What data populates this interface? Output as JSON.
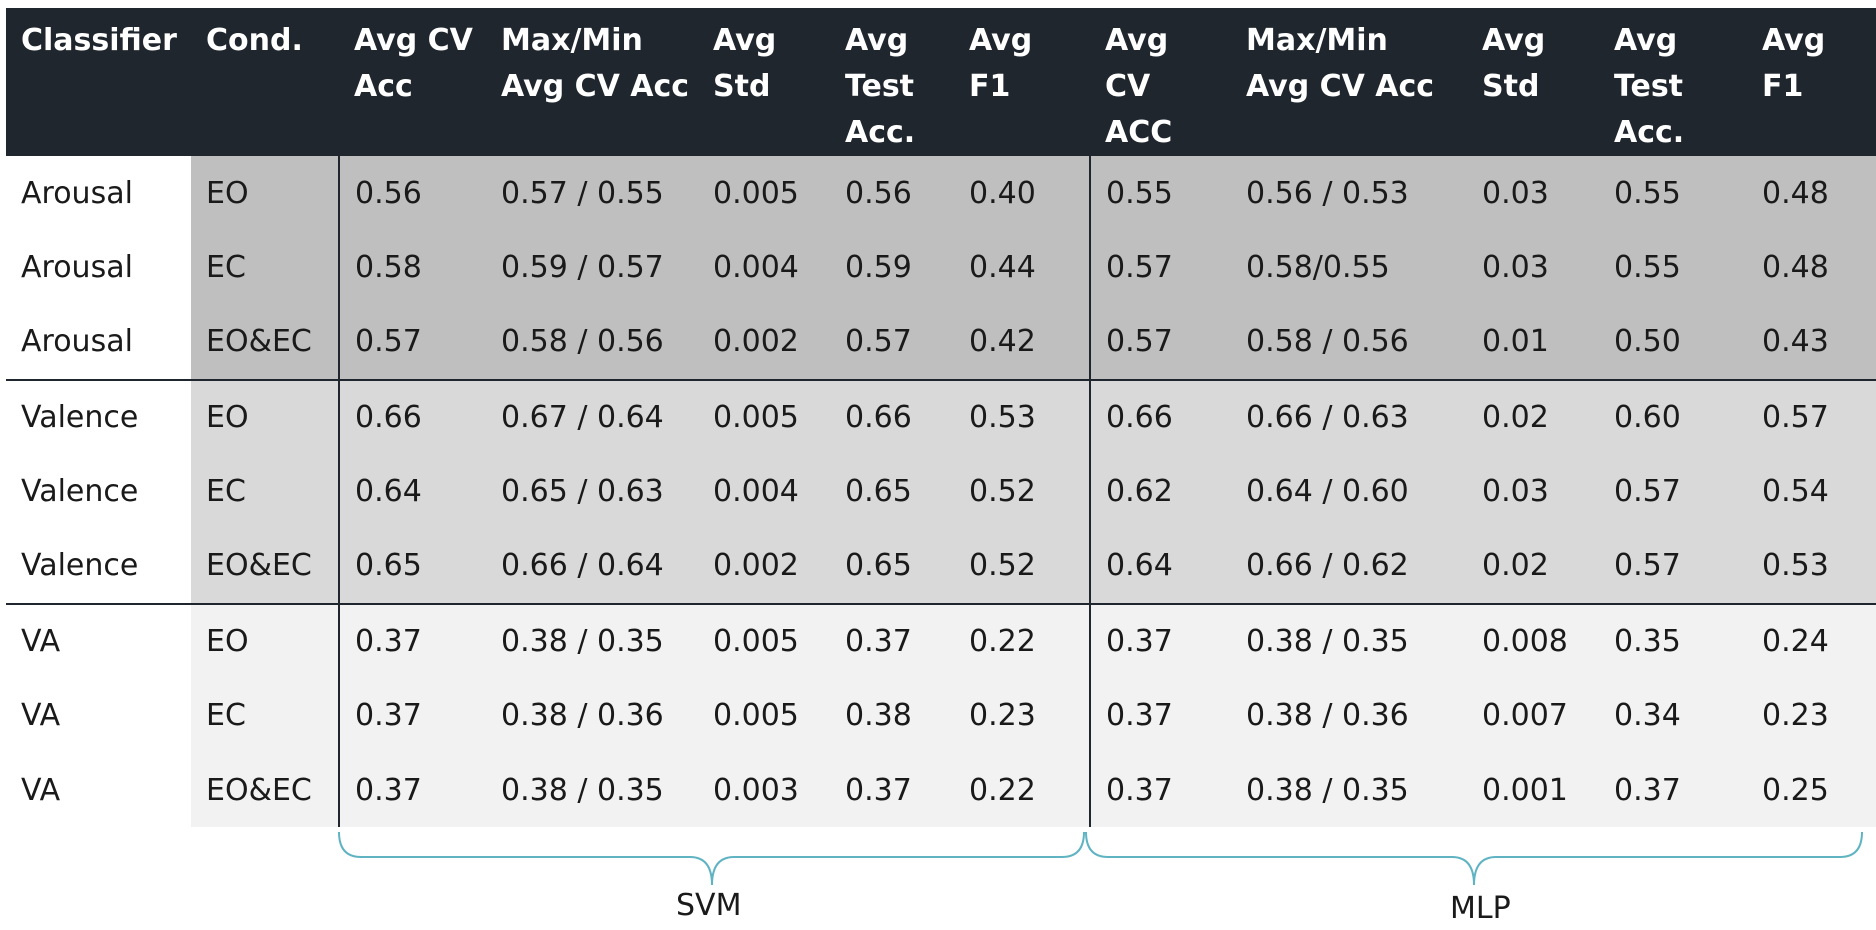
{
  "header": {
    "columns": [
      "Classifier",
      "Cond.",
      "Avg CV Acc",
      "Max/Min Avg CV Acc",
      "Avg Std",
      "Avg Test Acc.",
      "Avg F1",
      "Avg CV ACC",
      "Max/Min Avg CV Acc",
      "Avg Std",
      "Avg Test Acc.",
      "Avg F1"
    ]
  },
  "rows": [
    [
      "Arousal",
      "EO",
      "0.56",
      "0.57 / 0.55",
      "0.005",
      "0.56",
      "0.40",
      "0.55",
      "0.56 / 0.53",
      "0.03",
      "0.55",
      "0.48"
    ],
    [
      "Arousal",
      "EC",
      "0.58",
      "0.59 / 0.57",
      "0.004",
      "0.59",
      "0.44",
      "0.57",
      "0.58/0.55",
      "0.03",
      "0.55",
      "0.48"
    ],
    [
      "Arousal",
      "EO&EC",
      "0.57",
      "0.58 / 0.56",
      "0.002",
      "0.57",
      "0.42",
      "0.57",
      "0.58 / 0.56",
      "0.01",
      "0.50",
      "0.43"
    ],
    [
      "Valence",
      "EO",
      "0.66",
      "0.67 / 0.64",
      "0.005",
      "0.66",
      "0.53",
      "0.66",
      "0.66 / 0.63",
      "0.02",
      "0.60",
      "0.57"
    ],
    [
      "Valence",
      "EC",
      "0.64",
      "0.65 / 0.63",
      "0.004",
      "0.65",
      "0.52",
      "0.62",
      "0.64 / 0.60",
      "0.03",
      "0.57",
      "0.54"
    ],
    [
      "Valence",
      "EO&EC",
      "0.65",
      "0.66 / 0.64",
      "0.002",
      "0.65",
      "0.52",
      "0.64",
      "0.66 / 0.62",
      "0.02",
      "0.57",
      "0.53"
    ],
    [
      "VA",
      "EO",
      "0.37",
      "0.38 / 0.35",
      "0.005",
      "0.37",
      "0.22",
      "0.37",
      "0.38 / 0.35",
      "0.008",
      "0.35",
      "0.24"
    ],
    [
      "VA",
      "EC",
      "0.37",
      "0.38 / 0.36",
      "0.005",
      "0.38",
      "0.23",
      "0.37",
      "0.38 / 0.36",
      "0.007",
      "0.34",
      "0.23"
    ],
    [
      "VA",
      "EO&EC",
      "0.37",
      "0.38 / 0.35",
      "0.003",
      "0.37",
      "0.22",
      "0.37",
      "0.38 / 0.35",
      "0.001",
      "0.37",
      "0.25"
    ]
  ],
  "groups": {
    "svm_label": "SVM",
    "mlp_label": "MLP"
  },
  "colors": {
    "header_bg": "#1f262d",
    "arousal_bg": "#bfbfbf",
    "valence_bg": "#d9d9d9",
    "va_bg": "#f2f2f2",
    "brace": "#5fb3c2"
  }
}
